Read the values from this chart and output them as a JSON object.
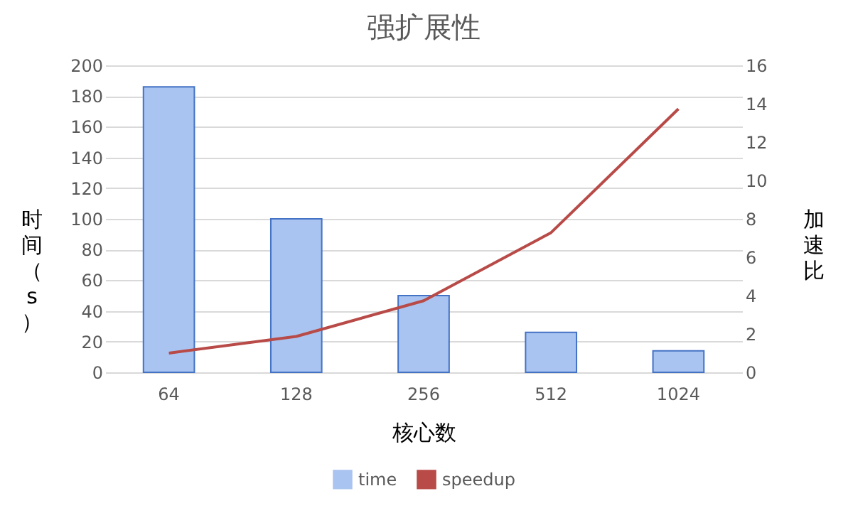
{
  "chart_data": {
    "type": "bar",
    "title": "强扩展性",
    "xlabel": "核心数",
    "ylabel": "时间（s）",
    "y2label": "加速比",
    "categories": [
      "64",
      "128",
      "256",
      "512",
      "1024"
    ],
    "series": [
      {
        "name": "time",
        "color": "#a9c4f0",
        "values": [
          186,
          100,
          50,
          26,
          14
        ]
      },
      {
        "name": "speedup",
        "type": "line",
        "axis": "y2",
        "color": "#b84a47",
        "values": [
          1.0,
          1.87,
          3.73,
          7.28,
          13.73
        ]
      }
    ],
    "ylim": [
      0,
      200
    ],
    "yticks": [
      0,
      20,
      40,
      60,
      80,
      100,
      120,
      140,
      160,
      180,
      200
    ],
    "y2lim": [
      0,
      16
    ],
    "y2ticks": [
      0,
      2,
      4,
      6,
      8,
      10,
      12,
      14,
      16
    ],
    "grid": "y",
    "legend": "bottom"
  }
}
